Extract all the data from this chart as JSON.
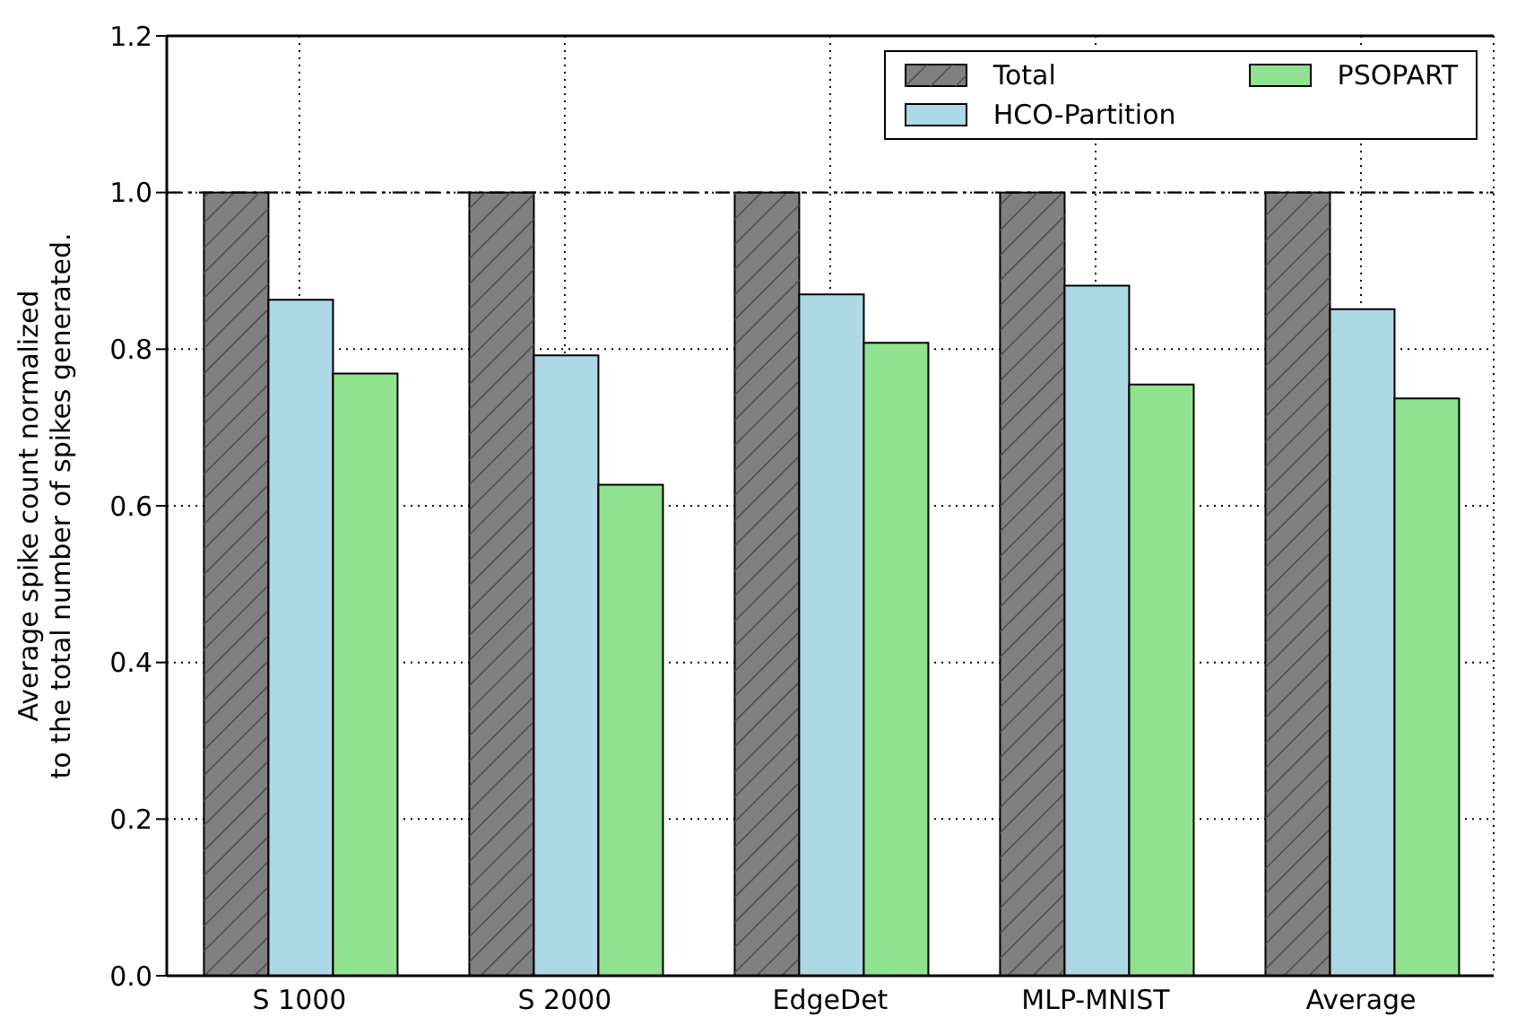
{
  "chart_data": {
    "type": "bar",
    "ylabel": "Average spike count normalized\nto the total number of spikes generated.",
    "categories": [
      "S 1000",
      "S 2000",
      "EdgeDet",
      "MLP-MNIST",
      "Average"
    ],
    "series": [
      {
        "name": "Total",
        "color": "#808080",
        "values": [
          1.0,
          1.0,
          1.0,
          1.0,
          1.0
        ]
      },
      {
        "name": "HCO-Partition",
        "color": "#add8e6",
        "values": [
          0.863,
          0.792,
          0.87,
          0.881,
          0.851
        ]
      },
      {
        "name": "PSOPART",
        "color": "#90e290",
        "values": [
          0.769,
          0.627,
          0.808,
          0.755,
          0.737
        ]
      }
    ],
    "ylim": [
      0,
      1.2
    ],
    "yticks": [
      {
        "value": 0,
        "label": "0.0"
      },
      {
        "value": 0.2,
        "label": "0.2"
      },
      {
        "value": 0.4,
        "label": "0.4"
      },
      {
        "value": 0.6,
        "label": "0.6"
      },
      {
        "value": 0.8,
        "label": "0.8"
      },
      {
        "value": 1,
        "label": "1.0"
      },
      {
        "value": 1.2,
        "label": "1.2"
      }
    ],
    "ref_lines": [
      {
        "axis": "y",
        "value": 1.0,
        "color": "#000000",
        "line_style": "dashdot"
      }
    ],
    "grid": true,
    "legend": "top right"
  }
}
